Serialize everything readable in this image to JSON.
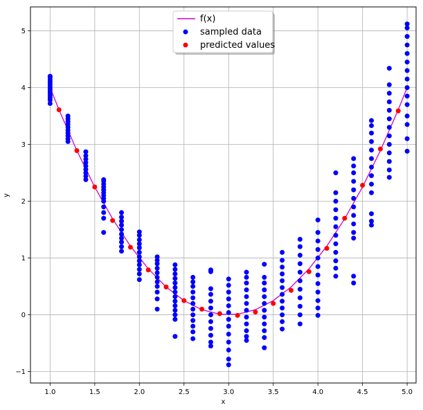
{
  "chart_data": {
    "type": "scatter",
    "title": "",
    "xlabel": "x",
    "ylabel": "y",
    "xlim": [
      0.78,
      5.1
    ],
    "ylim": [
      -1.2,
      5.42
    ],
    "xticks": [
      1.0,
      1.5,
      2.0,
      2.5,
      3.0,
      3.5,
      4.0,
      4.5,
      5.0
    ],
    "yticks": [
      -1,
      0,
      1,
      2,
      3,
      4,
      5
    ],
    "xtick_labels": [
      "1.0",
      "1.5",
      "2.0",
      "2.5",
      "3.0",
      "3.5",
      "4.0",
      "4.5",
      "5.0"
    ],
    "ytick_labels": [
      "−1",
      "0",
      "1",
      "2",
      "3",
      "4",
      "5"
    ],
    "grid": true,
    "legend_position": "top-center",
    "colors": {
      "line": "#cc00cc",
      "sampled": "#0000ff",
      "predicted": "#ff0000",
      "grid": "#b0b0b0"
    },
    "series": [
      {
        "name": "f(x)",
        "kind": "line",
        "x": [
          1.0,
          1.1,
          1.3,
          1.5,
          1.7,
          1.9,
          2.1,
          2.3,
          2.5,
          2.7,
          2.9,
          3.1,
          3.3,
          3.5,
          3.7,
          3.9,
          4.1,
          4.3,
          4.5,
          4.7,
          4.9,
          5.0
        ],
        "y": [
          4.0,
          3.61,
          2.89,
          2.25,
          1.69,
          1.21,
          0.81,
          0.49,
          0.25,
          0.09,
          0.01,
          0.01,
          0.09,
          0.25,
          0.49,
          0.81,
          1.21,
          1.69,
          2.25,
          2.89,
          3.61,
          4.0
        ]
      },
      {
        "name": "sampled data",
        "kind": "scatter_columns",
        "columns": [
          {
            "x": 1.0,
            "y": [
              3.72,
              3.78,
              3.82,
              3.86,
              3.9,
              3.94,
              3.98,
              4.02,
              4.06,
              4.1,
              4.14,
              4.18,
              4.2
            ]
          },
          {
            "x": 1.2,
            "y": [
              3.05,
              3.1,
              3.15,
              3.2,
              3.25,
              3.3,
              3.35,
              3.4,
              3.45,
              3.5
            ]
          },
          {
            "x": 1.4,
            "y": [
              2.38,
              2.44,
              2.5,
              2.56,
              2.62,
              2.68,
              2.74,
              2.8,
              2.87
            ]
          },
          {
            "x": 1.6,
            "y": [
              1.45,
              1.7,
              1.8,
              1.9,
              2.0,
              2.05,
              2.1,
              2.15,
              2.2,
              2.25,
              2.3,
              2.35,
              2.38
            ]
          },
          {
            "x": 1.8,
            "y": [
              1.12,
              1.2,
              1.28,
              1.35,
              1.42,
              1.5,
              1.58,
              1.65,
              1.72,
              1.8
            ]
          },
          {
            "x": 2.0,
            "y": [
              0.62,
              0.72,
              0.8,
              0.88,
              0.95,
              1.02,
              1.1,
              1.18,
              1.25,
              1.32,
              1.4,
              1.46
            ]
          },
          {
            "x": 2.2,
            "y": [
              0.1,
              0.28,
              0.4,
              0.5,
              0.58,
              0.66,
              0.74,
              0.82,
              0.9,
              0.96,
              1.02
            ]
          },
          {
            "x": 2.4,
            "y": [
              -0.38,
              -0.08,
              0.0,
              0.08,
              0.16,
              0.24,
              0.32,
              0.4,
              0.48,
              0.56,
              0.64,
              0.72,
              0.8,
              0.88
            ]
          },
          {
            "x": 2.6,
            "y": [
              -0.42,
              -0.3,
              -0.2,
              -0.1,
              0.0,
              0.1,
              0.2,
              0.3,
              0.4,
              0.5,
              0.58,
              0.66
            ]
          },
          {
            "x": 2.8,
            "y": [
              -0.55,
              -0.48,
              -0.36,
              -0.24,
              -0.12,
              0.0,
              0.12,
              0.24,
              0.36,
              0.46,
              0.76,
              0.79
            ]
          },
          {
            "x": 3.0,
            "y": [
              -0.88,
              -0.78,
              -0.62,
              -0.48,
              -0.34,
              -0.2,
              -0.08,
              0.04,
              0.16,
              0.28,
              0.4,
              0.52,
              0.63
            ]
          },
          {
            "x": 3.2,
            "y": [
              -0.45,
              -0.38,
              -0.28,
              -0.16,
              -0.04,
              0.08,
              0.2,
              0.32,
              0.44,
              0.56,
              0.66,
              0.75
            ]
          },
          {
            "x": 3.4,
            "y": [
              -0.58,
              -0.4,
              -0.28,
              -0.16,
              -0.04,
              0.08,
              0.2,
              0.32,
              0.44,
              0.56,
              0.66,
              0.89
            ]
          },
          {
            "x": 3.6,
            "y": [
              -0.25,
              -0.12,
              0.0,
              0.12,
              0.24,
              0.36,
              0.48,
              0.6,
              0.72,
              0.84,
              0.96,
              1.1
            ]
          },
          {
            "x": 3.8,
            "y": [
              -0.16,
              0.0,
              0.15,
              0.3,
              0.45,
              0.6,
              0.75,
              0.9,
              1.05,
              1.2,
              1.33
            ]
          },
          {
            "x": 4.0,
            "y": [
              -0.01,
              0.12,
              0.25,
              0.4,
              0.55,
              0.7,
              0.85,
              1.0,
              1.15,
              1.3,
              1.45,
              1.67
            ]
          },
          {
            "x": 4.2,
            "y": [
              0.68,
              0.82,
              0.95,
              1.1,
              1.25,
              1.4,
              1.55,
              1.7,
              1.85,
              2.0,
              2.15,
              2.5
            ]
          },
          {
            "x": 4.4,
            "y": [
              0.56,
              0.68,
              1.35,
              1.45,
              1.6,
              1.75,
              1.9,
              2.05,
              2.2,
              2.35,
              2.5,
              2.62,
              2.75
            ]
          },
          {
            "x": 4.6,
            "y": [
              1.58,
              1.65,
              1.78,
              2.15,
              2.3,
              2.45,
              2.6,
              2.75,
              2.9,
              3.05,
              3.2,
              3.33,
              3.42
            ]
          },
          {
            "x": 4.8,
            "y": [
              2.42,
              2.55,
              2.7,
              2.85,
              3.0,
              3.15,
              3.3,
              3.45,
              3.6,
              3.75,
              3.9,
              4.05,
              4.34
            ]
          },
          {
            "x": 5.0,
            "y": [
              2.88,
              3.1,
              3.35,
              3.5,
              3.7,
              3.85,
              4.0,
              4.15,
              4.3,
              4.45,
              4.6,
              4.75,
              4.9,
              5.05,
              5.12
            ]
          }
        ]
      },
      {
        "name": "predicted values",
        "kind": "scatter",
        "x": [
          1.1,
          1.3,
          1.5,
          1.7,
          1.9,
          2.1,
          2.3,
          2.5,
          2.7,
          2.9,
          3.1,
          3.3,
          3.5,
          3.7,
          3.9,
          4.1,
          4.3,
          4.5,
          4.7,
          4.9
        ],
        "y": [
          3.61,
          2.89,
          2.25,
          1.66,
          1.19,
          0.79,
          0.49,
          0.25,
          0.1,
          0.02,
          -0.01,
          0.05,
          0.2,
          0.43,
          0.76,
          1.17,
          1.7,
          2.28,
          2.92,
          3.59
        ]
      }
    ]
  }
}
